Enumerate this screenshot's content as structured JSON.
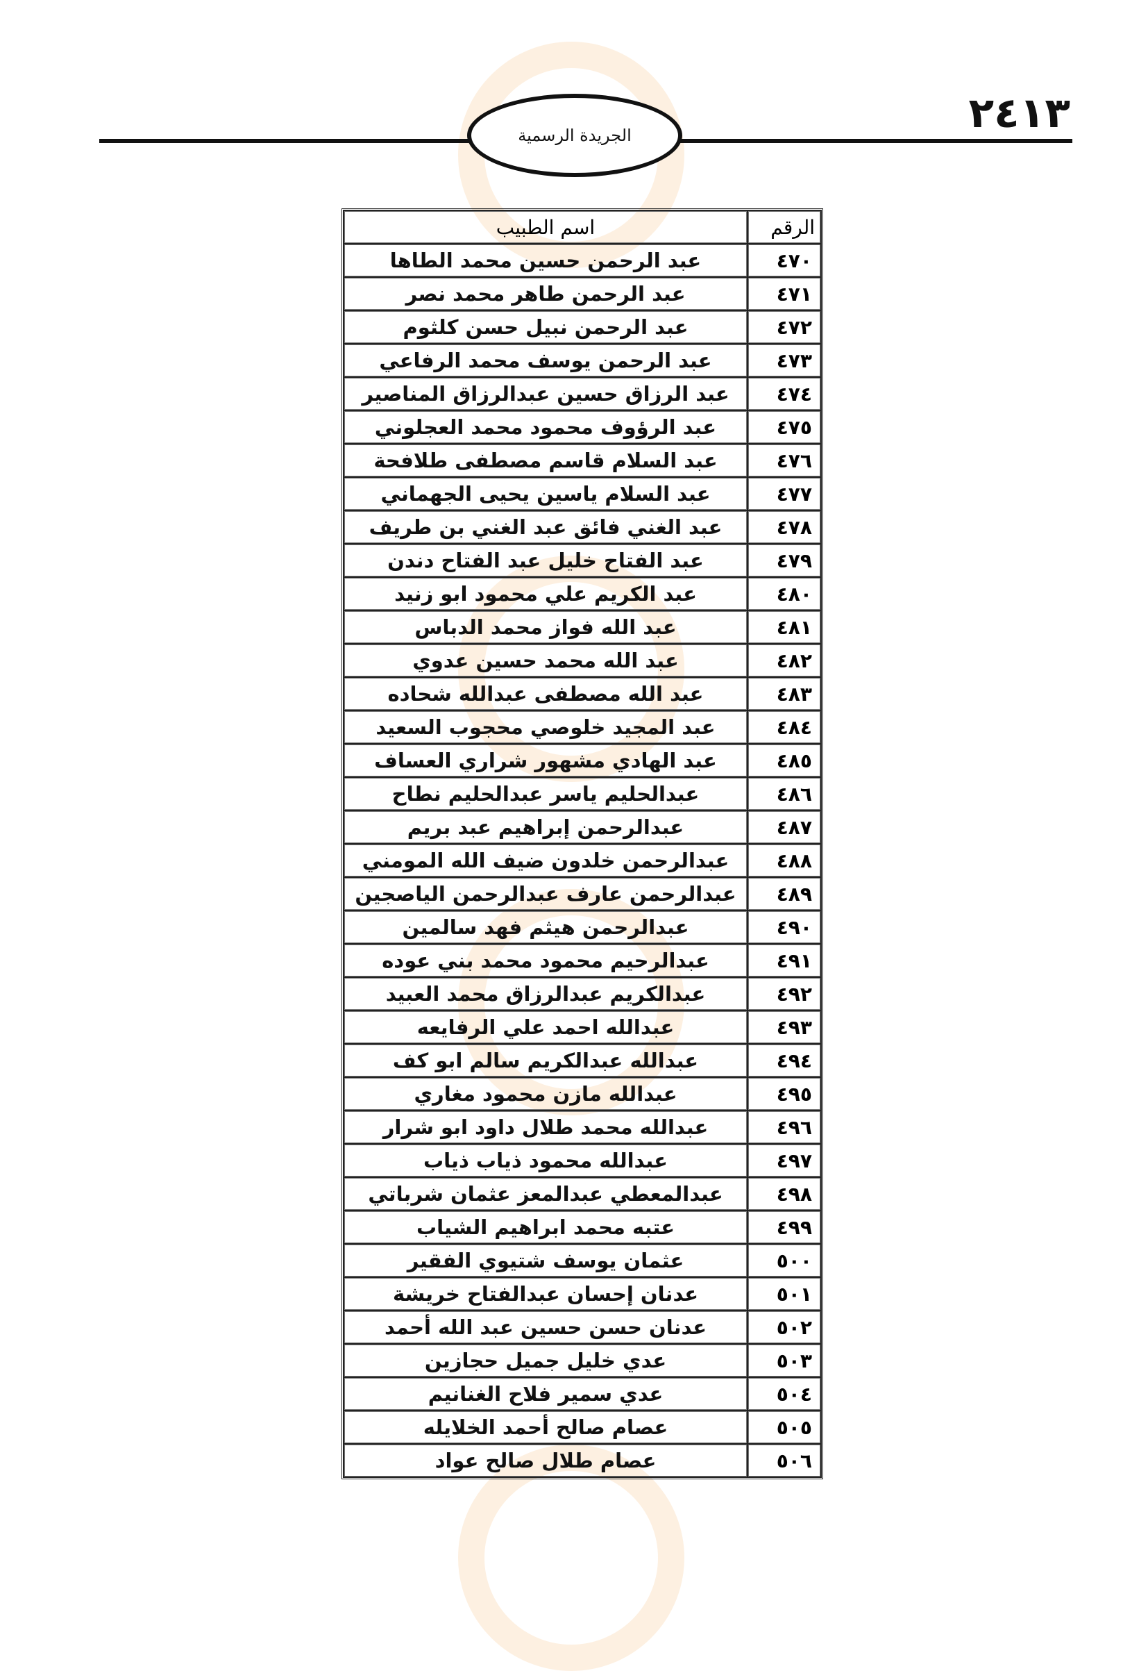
{
  "header": {
    "page_number": "٢٤١٣",
    "publication_title": "الجريدة الرسمية"
  },
  "table": {
    "columns": [
      "الرقم",
      "اسم الطبيب"
    ],
    "rows": [
      {
        "no": "٤٧٠",
        "name": "عبد الرحمن حسين محمد الطاها"
      },
      {
        "no": "٤٧١",
        "name": "عبد الرحمن طاهر محمد نصر"
      },
      {
        "no": "٤٧٢",
        "name": "عبد الرحمن نبيل حسن كلثوم"
      },
      {
        "no": "٤٧٣",
        "name": "عبد الرحمن يوسف محمد الرفاعي"
      },
      {
        "no": "٤٧٤",
        "name": "عبد الرزاق حسين عبدالرزاق المناصير"
      },
      {
        "no": "٤٧٥",
        "name": "عبد الرؤوف محمود محمد العجلوني"
      },
      {
        "no": "٤٧٦",
        "name": "عبد السلام قاسم مصطفى طلافحة"
      },
      {
        "no": "٤٧٧",
        "name": "عبد السلام ياسين يحيى الجهماني"
      },
      {
        "no": "٤٧٨",
        "name": "عبد الغني فائق عبد الغني بن طريف"
      },
      {
        "no": "٤٧٩",
        "name": "عبد الفتاح خليل عبد الفتاح دندن"
      },
      {
        "no": "٤٨٠",
        "name": "عبد الكريم علي محمود ابو زنيد"
      },
      {
        "no": "٤٨١",
        "name": "عبد الله فواز محمد الدباس"
      },
      {
        "no": "٤٨٢",
        "name": "عبد الله محمد حسين عدوي"
      },
      {
        "no": "٤٨٣",
        "name": "عبد الله مصطفى عبدالله شحاده"
      },
      {
        "no": "٤٨٤",
        "name": "عبد المجيد خلوصي محجوب السعيد"
      },
      {
        "no": "٤٨٥",
        "name": "عبد الهادي مشهور شراري العساف"
      },
      {
        "no": "٤٨٦",
        "name": "عبدالحليم ياسر عبدالحليم نطاح"
      },
      {
        "no": "٤٨٧",
        "name": "عبدالرحمن إبراهيم عبد بريم"
      },
      {
        "no": "٤٨٨",
        "name": "عبدالرحمن خلدون ضيف الله المومني"
      },
      {
        "no": "٤٨٩",
        "name": "عبدالرحمن عارف عبدالرحمن الياصجين"
      },
      {
        "no": "٤٩٠",
        "name": "عبدالرحمن هيثم فهد سالمين"
      },
      {
        "no": "٤٩١",
        "name": "عبدالرحيم محمود محمد بني عوده"
      },
      {
        "no": "٤٩٢",
        "name": "عبدالكريم عبدالرزاق محمد العبيد"
      },
      {
        "no": "٤٩٣",
        "name": "عبدالله احمد علي الرفايعه"
      },
      {
        "no": "٤٩٤",
        "name": "عبدالله عبدالكريم سالم ابو كف"
      },
      {
        "no": "٤٩٥",
        "name": "عبدالله مازن محمود مغاري"
      },
      {
        "no": "٤٩٦",
        "name": "عبدالله محمد طلال داود ابو شرار"
      },
      {
        "no": "٤٩٧",
        "name": "عبدالله محمود ذياب ذياب"
      },
      {
        "no": "٤٩٨",
        "name": "عبدالمعطي عبدالمعز عثمان شرباتي"
      },
      {
        "no": "٤٩٩",
        "name": "عتبه محمد ابراهيم الشياب"
      },
      {
        "no": "٥٠٠",
        "name": "عثمان يوسف شتيوي الفقير"
      },
      {
        "no": "٥٠١",
        "name": "عدنان إحسان عبدالفتاح خريشة"
      },
      {
        "no": "٥٠٢",
        "name": "عدنان حسن حسين عبد الله أحمد"
      },
      {
        "no": "٥٠٣",
        "name": "عدي خليل جميل حجازين"
      },
      {
        "no": "٥٠٤",
        "name": "عدي سمير فلاح الغنانيم"
      },
      {
        "no": "٥٠٥",
        "name": "عصام صالح أحمد الخلايله"
      },
      {
        "no": "٥٠٦",
        "name": "عصام طلال صالح عواد"
      }
    ]
  },
  "colors": {
    "text": "#111111",
    "watermark": "#f5aa5a"
  }
}
